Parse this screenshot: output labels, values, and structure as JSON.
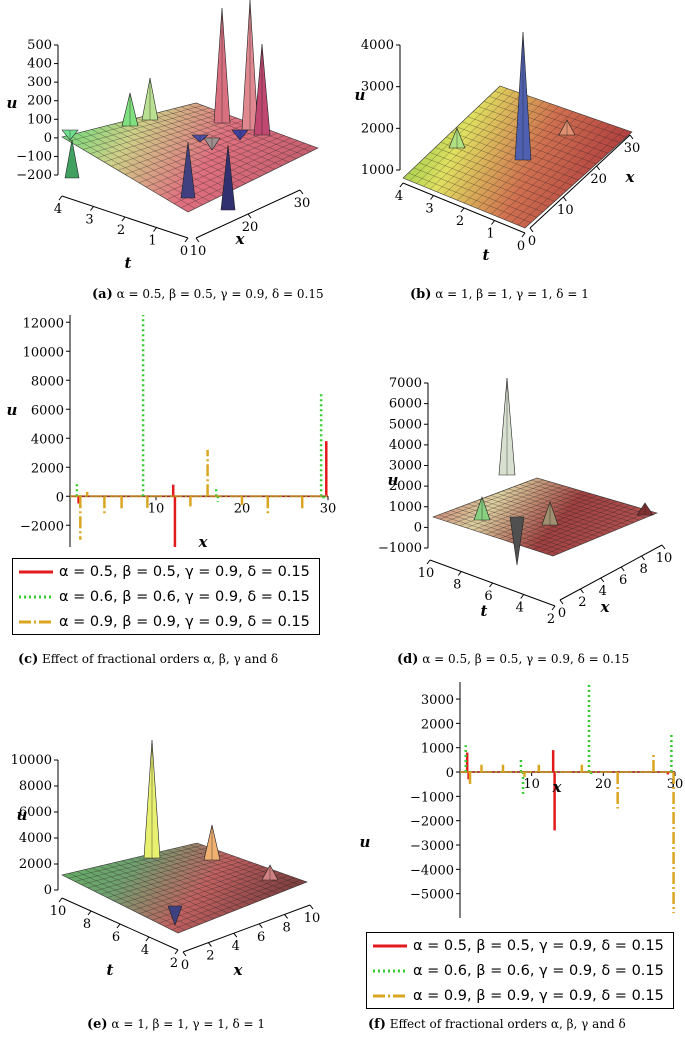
{
  "panels": {
    "a": {
      "tag": "(a)",
      "caption": "α = 0.5, β = 0.5, γ = 0.9, δ = 0.15",
      "zlabel": "u",
      "tlabel": "t",
      "xlabel": "x",
      "zticks": [
        "500",
        "400",
        "300",
        "200",
        "100",
        "0",
        "−100",
        "−200"
      ],
      "tticks": [
        "4",
        "3",
        "2",
        "1",
        "0"
      ],
      "xticks": [
        "10",
        "20",
        "30"
      ]
    },
    "b": {
      "tag": "(b)",
      "caption": "α = 1, β = 1, γ = 1, δ = 1",
      "zlabel": "u",
      "tlabel": "t",
      "xlabel": "x",
      "zticks": [
        "4000",
        "3000",
        "2000",
        "1000"
      ],
      "tticks": [
        "4",
        "3",
        "2",
        "1",
        "0"
      ],
      "xticks": [
        "0",
        "10",
        "20",
        "30"
      ]
    },
    "c": {
      "tag": "(c)",
      "caption": "Effect of fractional orders α, β, γ and δ",
      "ylabel": "u",
      "xlabel": "x",
      "yticks": [
        "12000",
        "10000",
        "8000",
        "6000",
        "4000",
        "2000",
        "0",
        "−2000"
      ],
      "xticks": [
        "10",
        "20",
        "30"
      ],
      "legend": [
        "α = 0.5, β = 0.5, γ = 0.9, δ = 0.15",
        "α = 0.6, β = 0.6, γ = 0.9, δ = 0.15",
        "α = 0.9, β = 0.9, γ = 0.9, δ = 0.15"
      ]
    },
    "d": {
      "tag": "(d)",
      "caption": "α = 0.5, β = 0.5, γ = 0.9, δ = 0.15",
      "zlabel": "u",
      "tlabel": "t",
      "xlabel": "x",
      "zticks": [
        "7000",
        "6000",
        "5000",
        "4000",
        "3000",
        "2000",
        "1000",
        "0",
        "−1000"
      ],
      "tticks": [
        "10",
        "8",
        "6",
        "4",
        "2"
      ],
      "xticks": [
        "0",
        "2",
        "4",
        "6",
        "8",
        "10"
      ]
    },
    "e": {
      "tag": "(e)",
      "caption": "α = 1, β = 1, γ = 1, δ = 1",
      "zlabel": "u",
      "tlabel": "t",
      "xlabel": "x",
      "zticks": [
        "10000",
        "8000",
        "6000",
        "4000",
        "2000",
        "0"
      ],
      "tticks": [
        "10",
        "8",
        "6",
        "4",
        "2"
      ],
      "xticks": [
        "0",
        "2",
        "4",
        "6",
        "8",
        "10"
      ]
    },
    "f": {
      "tag": "(f)",
      "caption": "Effect of fractional orders α, β, γ and δ",
      "ylabel": "u",
      "xlabel": "x",
      "yticks": [
        "3000",
        "2000",
        "1000",
        "0",
        "−1000",
        "−2000",
        "−3000",
        "−4000",
        "−5000"
      ],
      "xticks": [
        "10",
        "20",
        "30"
      ],
      "legend": [
        "α = 0.5, β = 0.5, γ = 0.9, δ = 0.15",
        "α = 0.6, β = 0.6, γ = 0.9, δ = 0.15",
        "α = 0.9, β = 0.9, γ = 0.9, δ = 0.15"
      ]
    }
  },
  "series_colors": [
    "#e31a1c",
    "#33cc33",
    "#daa520"
  ],
  "chart_data": [
    {
      "panel": "c",
      "type": "line",
      "x_range": [
        0,
        30
      ],
      "y_range": [
        -3500,
        12500
      ],
      "series": [
        {
          "style": "solid",
          "spikes": [
            [
              1,
              -500
            ],
            [
              12,
              800
            ],
            [
              12.2,
              -3500
            ],
            [
              29.8,
              3800
            ]
          ]
        },
        {
          "style": "dotted",
          "spikes": [
            [
              0.8,
              900
            ],
            [
              8.5,
              12500
            ],
            [
              17,
              700
            ],
            [
              17.2,
              -400
            ],
            [
              29.2,
              7200
            ],
            [
              29.5,
              -300
            ]
          ]
        },
        {
          "style": "dashdot",
          "spikes": [
            [
              1.2,
              -3000
            ],
            [
              2,
              300
            ],
            [
              4,
              -1200
            ],
            [
              6,
              -900
            ],
            [
              9,
              -800
            ],
            [
              14,
              -700
            ],
            [
              16,
              3200
            ],
            [
              20,
              -600
            ],
            [
              23,
              -1300
            ],
            [
              27,
              -900
            ]
          ]
        }
      ]
    },
    {
      "panel": "f",
      "type": "line",
      "x_range": [
        0,
        30
      ],
      "y_range": [
        -6000,
        3700
      ],
      "series": [
        {
          "style": "solid",
          "spikes": [
            [
              1,
              800
            ],
            [
              1.2,
              -300
            ],
            [
              13,
              900
            ],
            [
              13.2,
              -2400
            ],
            [
              29,
              -100
            ]
          ]
        },
        {
          "style": "dotted",
          "spikes": [
            [
              0.8,
              1100
            ],
            [
              8.5,
              550
            ],
            [
              8.8,
              -900
            ],
            [
              18,
              3600
            ],
            [
              18.3,
              -100
            ],
            [
              29.5,
              1600
            ]
          ]
        },
        {
          "style": "dashdot",
          "spikes": [
            [
              1.4,
              -500
            ],
            [
              3,
              300
            ],
            [
              6,
              300
            ],
            [
              9,
              -200
            ],
            [
              11,
              300
            ],
            [
              17,
              300
            ],
            [
              22,
              -1500
            ],
            [
              27,
              700
            ],
            [
              29.8,
              -5800
            ]
          ]
        }
      ]
    }
  ]
}
